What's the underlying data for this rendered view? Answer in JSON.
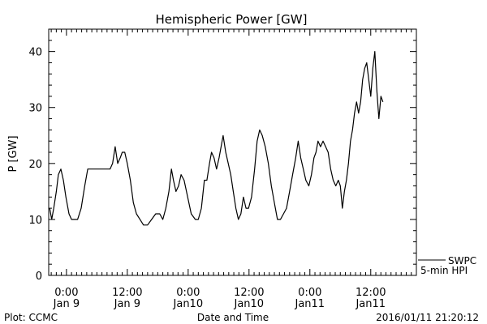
{
  "chart_data": {
    "type": "line",
    "title": "Hemispheric Power [GW]",
    "xlabel": "Date and Time",
    "ylabel": "P [GW]",
    "x_unit": "hours since Jan 9 00:00",
    "xlim": [
      -3.5,
      69
    ],
    "ylim": [
      0,
      44
    ],
    "y_ticks": [
      0,
      10,
      20,
      30,
      40
    ],
    "x_ticks": [
      {
        "x": 0,
        "line1": "0:00",
        "line2": "Jan 9"
      },
      {
        "x": 12,
        "line1": "12:00",
        "line2": "Jan 9"
      },
      {
        "x": 24,
        "line1": "0:00",
        "line2": "Jan10"
      },
      {
        "x": 36,
        "line1": "12:00",
        "line2": "Jan10"
      },
      {
        "x": 48,
        "line1": "0:00",
        "line2": "Jan11"
      },
      {
        "x": 60,
        "line1": "12:00",
        "line2": "Jan11"
      }
    ],
    "series": [
      {
        "name": "SWPC",
        "values": [
          [
            -3.3,
            12
          ],
          [
            -2.9,
            10
          ],
          [
            -2.5,
            12
          ],
          [
            -2.0,
            15
          ],
          [
            -1.6,
            18
          ],
          [
            -1.1,
            19
          ],
          [
            -0.6,
            17
          ],
          [
            -0.1,
            14
          ],
          [
            0.5,
            11
          ],
          [
            1.0,
            10
          ],
          [
            1.6,
            10
          ],
          [
            2.2,
            10
          ],
          [
            2.9,
            12
          ],
          [
            3.6,
            16
          ],
          [
            4.2,
            19
          ],
          [
            5.0,
            19
          ],
          [
            6.0,
            19
          ],
          [
            7.0,
            19
          ],
          [
            8.0,
            19
          ],
          [
            8.6,
            19
          ],
          [
            9.1,
            20
          ],
          [
            9.6,
            23
          ],
          [
            10.1,
            20
          ],
          [
            10.6,
            21
          ],
          [
            11.0,
            22
          ],
          [
            11.5,
            22
          ],
          [
            12.0,
            20
          ],
          [
            12.6,
            17
          ],
          [
            13.2,
            13
          ],
          [
            13.8,
            11
          ],
          [
            14.5,
            10
          ],
          [
            15.2,
            9
          ],
          [
            16.0,
            9
          ],
          [
            16.8,
            10
          ],
          [
            17.6,
            11
          ],
          [
            18.4,
            11
          ],
          [
            19.0,
            10
          ],
          [
            19.6,
            12
          ],
          [
            20.2,
            15
          ],
          [
            20.7,
            19
          ],
          [
            21.1,
            17
          ],
          [
            21.6,
            15
          ],
          [
            22.1,
            16
          ],
          [
            22.6,
            18
          ],
          [
            23.2,
            17
          ],
          [
            23.9,
            14
          ],
          [
            24.6,
            11
          ],
          [
            25.4,
            10
          ],
          [
            26.0,
            10
          ],
          [
            26.6,
            12
          ],
          [
            27.2,
            17
          ],
          [
            27.7,
            17
          ],
          [
            28.2,
            20
          ],
          [
            28.6,
            22
          ],
          [
            29.1,
            21
          ],
          [
            29.6,
            19
          ],
          [
            30.1,
            21
          ],
          [
            30.5,
            23
          ],
          [
            30.9,
            25
          ],
          [
            31.4,
            22
          ],
          [
            31.9,
            20
          ],
          [
            32.4,
            18
          ],
          [
            32.9,
            15
          ],
          [
            33.4,
            12
          ],
          [
            33.9,
            10
          ],
          [
            34.4,
            11
          ],
          [
            34.9,
            14
          ],
          [
            35.4,
            12
          ],
          [
            35.9,
            12
          ],
          [
            36.5,
            14
          ],
          [
            37.1,
            19
          ],
          [
            37.6,
            24
          ],
          [
            38.1,
            26
          ],
          [
            38.6,
            25
          ],
          [
            39.2,
            23
          ],
          [
            39.8,
            20
          ],
          [
            40.4,
            16
          ],
          [
            41.0,
            13
          ],
          [
            41.6,
            10
          ],
          [
            42.2,
            10
          ],
          [
            42.8,
            11
          ],
          [
            43.4,
            12
          ],
          [
            44.0,
            15
          ],
          [
            44.6,
            18
          ],
          [
            45.2,
            21
          ],
          [
            45.7,
            24
          ],
          [
            46.2,
            21
          ],
          [
            46.7,
            19
          ],
          [
            47.2,
            17
          ],
          [
            47.8,
            16
          ],
          [
            48.3,
            18
          ],
          [
            48.8,
            21
          ],
          [
            49.2,
            22
          ],
          [
            49.6,
            24
          ],
          [
            50.1,
            23
          ],
          [
            50.6,
            24
          ],
          [
            51.1,
            23
          ],
          [
            51.6,
            22
          ],
          [
            52.1,
            19
          ],
          [
            52.6,
            17
          ],
          [
            53.1,
            16
          ],
          [
            53.6,
            17
          ],
          [
            54.0,
            16
          ],
          [
            54.4,
            12
          ],
          [
            54.8,
            15
          ],
          [
            55.2,
            17
          ],
          [
            55.6,
            20
          ],
          [
            56.0,
            24
          ],
          [
            56.4,
            26
          ],
          [
            56.8,
            29
          ],
          [
            57.2,
            31
          ],
          [
            57.6,
            29
          ],
          [
            58.0,
            31
          ],
          [
            58.4,
            35
          ],
          [
            58.8,
            37
          ],
          [
            59.2,
            38
          ],
          [
            59.6,
            35
          ],
          [
            60.0,
            32
          ],
          [
            60.4,
            37
          ],
          [
            60.8,
            40
          ],
          [
            61.2,
            33
          ],
          [
            61.6,
            28
          ],
          [
            62.0,
            32
          ],
          [
            62.4,
            31
          ]
        ]
      }
    ],
    "legend": {
      "line1": "SWPC",
      "line2": "5-min HPI",
      "placement": "bottom-right"
    }
  },
  "footer": {
    "plot_credit": "Plot: CCMC",
    "timestamp": "2016/01/11 21:20:12"
  }
}
